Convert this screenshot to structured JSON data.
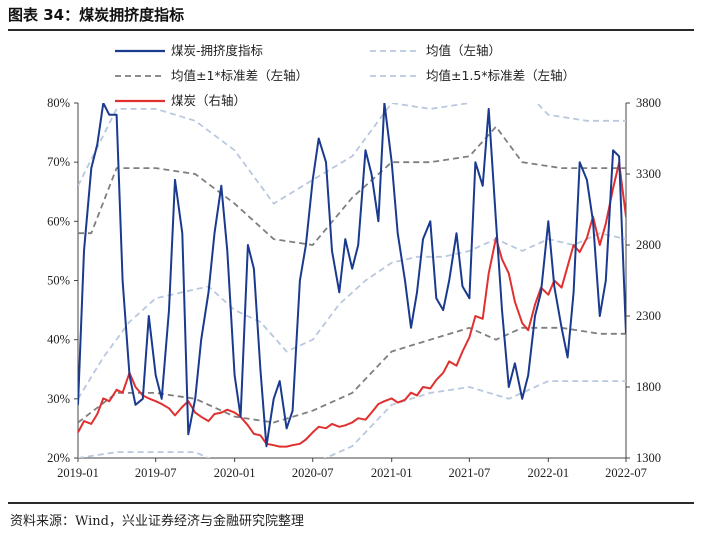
{
  "figure": {
    "title": "图表 34：煤炭拥挤度指标",
    "source": "资料来源：Wind，兴业证券经济与金融研究院整理"
  },
  "chart_data": {
    "type": "line",
    "title": "",
    "x_ticks": [
      "2019-01",
      "2019-07",
      "2020-01",
      "2020-07",
      "2021-01",
      "2021-07",
      "2022-01",
      "2022-07"
    ],
    "x_range": [
      "2019-01",
      "2022-07"
    ],
    "y_left": {
      "ticks": [
        "20%",
        "30%",
        "40%",
        "50%",
        "60%",
        "70%",
        "80%"
      ],
      "range": [
        0.2,
        0.8
      ],
      "format": "percent"
    },
    "y_right": {
      "ticks": [
        "1300",
        "1800",
        "2300",
        "2800",
        "3300",
        "3800"
      ],
      "range": [
        1300,
        3800
      ]
    },
    "legend": {
      "placement": "top",
      "columns": 2
    },
    "series": [
      {
        "name": "煤炭-拥挤度指标",
        "axis": "left",
        "style": "solid",
        "color": "#1a3a8f",
        "points": [
          [
            "2019-01-01",
            0.29
          ],
          [
            "2019-01-15",
            0.55
          ],
          [
            "2019-02-01",
            0.69
          ],
          [
            "2019-02-15",
            0.73
          ],
          [
            "2019-03-01",
            0.8
          ],
          [
            "2019-03-15",
            0.78
          ],
          [
            "2019-04-01",
            0.78
          ],
          [
            "2019-04-15",
            0.5
          ],
          [
            "2019-05-01",
            0.34
          ],
          [
            "2019-05-15",
            0.29
          ],
          [
            "2019-06-01",
            0.3
          ],
          [
            "2019-06-15",
            0.44
          ],
          [
            "2019-07-01",
            0.34
          ],
          [
            "2019-07-15",
            0.3
          ],
          [
            "2019-08-01",
            0.45
          ],
          [
            "2019-08-15",
            0.67
          ],
          [
            "2019-09-01",
            0.58
          ],
          [
            "2019-09-15",
            0.24
          ],
          [
            "2019-10-01",
            0.3
          ],
          [
            "2019-10-15",
            0.4
          ],
          [
            "2019-11-01",
            0.48
          ],
          [
            "2019-11-15",
            0.58
          ],
          [
            "2019-12-01",
            0.66
          ],
          [
            "2019-12-15",
            0.55
          ],
          [
            "2020-01-01",
            0.34
          ],
          [
            "2020-01-15",
            0.27
          ],
          [
            "2020-02-01",
            0.56
          ],
          [
            "2020-02-15",
            0.52
          ],
          [
            "2020-03-01",
            0.35
          ],
          [
            "2020-03-15",
            0.22
          ],
          [
            "2020-04-01",
            0.3
          ],
          [
            "2020-04-15",
            0.33
          ],
          [
            "2020-05-01",
            0.25
          ],
          [
            "2020-05-15",
            0.28
          ],
          [
            "2020-06-01",
            0.5
          ],
          [
            "2020-06-15",
            0.56
          ],
          [
            "2020-07-01",
            0.67
          ],
          [
            "2020-07-15",
            0.74
          ],
          [
            "2020-08-01",
            0.7
          ],
          [
            "2020-08-15",
            0.55
          ],
          [
            "2020-09-01",
            0.48
          ],
          [
            "2020-09-15",
            0.57
          ],
          [
            "2020-10-01",
            0.52
          ],
          [
            "2020-10-15",
            0.56
          ],
          [
            "2020-11-01",
            0.72
          ],
          [
            "2020-11-15",
            0.68
          ],
          [
            "2020-12-01",
            0.6
          ],
          [
            "2020-12-15",
            0.8
          ],
          [
            "2021-01-01",
            0.7
          ],
          [
            "2021-01-15",
            0.58
          ],
          [
            "2021-02-01",
            0.5
          ],
          [
            "2021-02-15",
            0.42
          ],
          [
            "2021-03-01",
            0.48
          ],
          [
            "2021-03-15",
            0.57
          ],
          [
            "2021-04-01",
            0.6
          ],
          [
            "2021-04-15",
            0.47
          ],
          [
            "2021-05-01",
            0.45
          ],
          [
            "2021-05-15",
            0.5
          ],
          [
            "2021-06-01",
            0.58
          ],
          [
            "2021-06-15",
            0.49
          ],
          [
            "2021-07-01",
            0.47
          ],
          [
            "2021-07-15",
            0.7
          ],
          [
            "2021-08-01",
            0.66
          ],
          [
            "2021-08-15",
            0.79
          ],
          [
            "2021-09-01",
            0.6
          ],
          [
            "2021-09-15",
            0.45
          ],
          [
            "2021-10-01",
            0.32
          ],
          [
            "2021-10-15",
            0.36
          ],
          [
            "2021-11-01",
            0.3
          ],
          [
            "2021-11-15",
            0.34
          ],
          [
            "2021-12-01",
            0.44
          ],
          [
            "2021-12-15",
            0.48
          ],
          [
            "2022-01-01",
            0.6
          ],
          [
            "2022-01-15",
            0.49
          ],
          [
            "2022-02-01",
            0.42
          ],
          [
            "2022-02-15",
            0.37
          ],
          [
            "2022-03-01",
            0.48
          ],
          [
            "2022-03-15",
            0.7
          ],
          [
            "2022-04-01",
            0.67
          ],
          [
            "2022-04-15",
            0.6
          ],
          [
            "2022-05-01",
            0.44
          ],
          [
            "2022-05-15",
            0.5
          ],
          [
            "2022-06-01",
            0.72
          ],
          [
            "2022-06-15",
            0.71
          ],
          [
            "2022-07-01",
            0.41
          ]
        ]
      },
      {
        "name": "均值（左轴）",
        "axis": "left",
        "style": "dashed",
        "color": "#b9c8df",
        "points": [
          [
            "2019-01-01",
            0.3
          ],
          [
            "2019-03-01",
            0.37
          ],
          [
            "2019-05-01",
            0.43
          ],
          [
            "2019-07-01",
            0.47
          ],
          [
            "2019-09-01",
            0.48
          ],
          [
            "2019-11-01",
            0.49
          ],
          [
            "2020-01-01",
            0.45
          ],
          [
            "2020-03-01",
            0.43
          ],
          [
            "2020-05-01",
            0.38
          ],
          [
            "2020-07-01",
            0.4
          ],
          [
            "2020-09-01",
            0.46
          ],
          [
            "2020-11-01",
            0.5
          ],
          [
            "2021-01-01",
            0.53
          ],
          [
            "2021-03-01",
            0.54
          ],
          [
            "2021-05-01",
            0.54
          ],
          [
            "2021-07-01",
            0.55
          ],
          [
            "2021-09-01",
            0.57
          ],
          [
            "2021-11-01",
            0.55
          ],
          [
            "2022-01-01",
            0.57
          ],
          [
            "2022-03-01",
            0.56
          ],
          [
            "2022-05-01",
            0.58
          ],
          [
            "2022-07-01",
            0.57
          ]
        ]
      },
      {
        "name": "均值±1*标准差（左轴）",
        "axis": "left",
        "style": "dashed",
        "color": "#7f7f7f",
        "points": [
          [
            "2019-01-01",
            0.58
          ],
          [
            "2019-02-01",
            0.58
          ],
          [
            "2019-04-01",
            0.69
          ],
          [
            "2019-07-01",
            0.69
          ],
          [
            "2019-10-01",
            0.68
          ],
          [
            "2020-01-01",
            0.63
          ],
          [
            "2020-04-01",
            0.57
          ],
          [
            "2020-07-01",
            0.56
          ],
          [
            "2020-10-01",
            0.64
          ],
          [
            "2021-01-01",
            0.7
          ],
          [
            "2021-04-01",
            0.7
          ],
          [
            "2021-07-01",
            0.71
          ],
          [
            "2021-09-01",
            0.76
          ],
          [
            "2021-11-01",
            0.7
          ],
          [
            "2022-02-01",
            0.69
          ],
          [
            "2022-05-01",
            0.69
          ],
          [
            "2022-07-01",
            0.69
          ],
          [
            "2019-01-01",
            0.26
          ],
          [
            "2019-04-01",
            0.31
          ],
          [
            "2019-07-01",
            0.31
          ],
          [
            "2019-10-01",
            0.3
          ],
          [
            "2020-01-01",
            0.27
          ],
          [
            "2020-04-01",
            0.26
          ],
          [
            "2020-07-01",
            0.28
          ],
          [
            "2020-10-01",
            0.31
          ],
          [
            "2021-01-01",
            0.38
          ],
          [
            "2021-04-01",
            0.4
          ],
          [
            "2021-07-01",
            0.42
          ],
          [
            "2021-09-01",
            0.4
          ],
          [
            "2021-11-01",
            0.42
          ],
          [
            "2022-02-01",
            0.42
          ],
          [
            "2022-05-01",
            0.41
          ],
          [
            "2022-07-01",
            0.41
          ]
        ]
      },
      {
        "name": "均值±1.5*标准差（左轴）",
        "axis": "left",
        "style": "dashed",
        "color": "#b9c8df",
        "points": [
          [
            "2019-01-01",
            0.66
          ],
          [
            "2019-04-01",
            0.79
          ],
          [
            "2019-07-01",
            0.79
          ],
          [
            "2019-10-01",
            0.77
          ],
          [
            "2020-01-01",
            0.72
          ],
          [
            "2020-04-01",
            0.63
          ],
          [
            "2020-07-01",
            0.67
          ],
          [
            "2020-10-01",
            0.71
          ],
          [
            "2021-01-01",
            0.8
          ],
          [
            "2021-04-01",
            0.79
          ],
          [
            "2021-07-01",
            0.8
          ],
          [
            "2021-10-01",
            0.85
          ],
          [
            "2022-01-01",
            0.78
          ],
          [
            "2022-04-01",
            0.77
          ],
          [
            "2022-07-01",
            0.77
          ],
          [
            "2019-01-01",
            0.2
          ],
          [
            "2019-04-01",
            0.21
          ],
          [
            "2019-07-01",
            0.21
          ],
          [
            "2019-10-01",
            0.21
          ],
          [
            "2020-01-01",
            0.18
          ],
          [
            "2020-04-01",
            0.17
          ],
          [
            "2020-07-01",
            0.19
          ],
          [
            "2020-10-01",
            0.22
          ],
          [
            "2021-01-01",
            0.29
          ],
          [
            "2021-04-01",
            0.31
          ],
          [
            "2021-07-01",
            0.32
          ],
          [
            "2021-10-01",
            0.3
          ],
          [
            "2022-01-01",
            0.33
          ],
          [
            "2022-04-01",
            0.33
          ],
          [
            "2022-07-01",
            0.33
          ]
        ]
      },
      {
        "name": "煤炭（右轴）",
        "axis": "right",
        "style": "solid",
        "color": "#e03030",
        "points": [
          [
            "2019-01-01",
            1480
          ],
          [
            "2019-01-15",
            1560
          ],
          [
            "2019-02-01",
            1540
          ],
          [
            "2019-02-15",
            1610
          ],
          [
            "2019-03-01",
            1720
          ],
          [
            "2019-03-15",
            1700
          ],
          [
            "2019-04-01",
            1780
          ],
          [
            "2019-04-15",
            1760
          ],
          [
            "2019-05-01",
            1900
          ],
          [
            "2019-05-15",
            1800
          ],
          [
            "2019-06-01",
            1740
          ],
          [
            "2019-06-15",
            1720
          ],
          [
            "2019-07-01",
            1700
          ],
          [
            "2019-07-15",
            1680
          ],
          [
            "2019-08-01",
            1650
          ],
          [
            "2019-08-15",
            1600
          ],
          [
            "2019-09-01",
            1660
          ],
          [
            "2019-09-15",
            1700
          ],
          [
            "2019-10-01",
            1620
          ],
          [
            "2019-10-15",
            1590
          ],
          [
            "2019-11-01",
            1560
          ],
          [
            "2019-11-15",
            1610
          ],
          [
            "2019-12-01",
            1620
          ],
          [
            "2019-12-15",
            1640
          ],
          [
            "2020-01-01",
            1620
          ],
          [
            "2020-01-15",
            1590
          ],
          [
            "2020-02-01",
            1530
          ],
          [
            "2020-02-15",
            1470
          ],
          [
            "2020-03-01",
            1460
          ],
          [
            "2020-03-15",
            1400
          ],
          [
            "2020-04-01",
            1390
          ],
          [
            "2020-04-15",
            1380
          ],
          [
            "2020-05-01",
            1380
          ],
          [
            "2020-05-15",
            1390
          ],
          [
            "2020-06-01",
            1400
          ],
          [
            "2020-06-15",
            1430
          ],
          [
            "2020-07-01",
            1480
          ],
          [
            "2020-07-15",
            1520
          ],
          [
            "2020-08-01",
            1510
          ],
          [
            "2020-08-15",
            1540
          ],
          [
            "2020-09-01",
            1520
          ],
          [
            "2020-09-15",
            1530
          ],
          [
            "2020-10-01",
            1550
          ],
          [
            "2020-10-15",
            1580
          ],
          [
            "2020-11-01",
            1570
          ],
          [
            "2020-11-15",
            1620
          ],
          [
            "2020-12-01",
            1680
          ],
          [
            "2020-12-15",
            1700
          ],
          [
            "2021-01-01",
            1720
          ],
          [
            "2021-01-15",
            1690
          ],
          [
            "2021-02-01",
            1710
          ],
          [
            "2021-02-15",
            1760
          ],
          [
            "2021-03-01",
            1740
          ],
          [
            "2021-03-15",
            1800
          ],
          [
            "2021-04-01",
            1790
          ],
          [
            "2021-04-15",
            1850
          ],
          [
            "2021-05-01",
            1900
          ],
          [
            "2021-05-15",
            1980
          ],
          [
            "2021-06-01",
            1950
          ],
          [
            "2021-06-15",
            2050
          ],
          [
            "2021-07-01",
            2150
          ],
          [
            "2021-07-15",
            2300
          ],
          [
            "2021-08-01",
            2280
          ],
          [
            "2021-08-15",
            2600
          ],
          [
            "2021-09-01",
            2850
          ],
          [
            "2021-09-15",
            2700
          ],
          [
            "2021-10-01",
            2600
          ],
          [
            "2021-10-15",
            2400
          ],
          [
            "2021-11-01",
            2250
          ],
          [
            "2021-11-15",
            2200
          ],
          [
            "2021-12-01",
            2380
          ],
          [
            "2021-12-15",
            2500
          ],
          [
            "2022-01-01",
            2450
          ],
          [
            "2022-01-15",
            2550
          ],
          [
            "2022-02-01",
            2500
          ],
          [
            "2022-02-15",
            2650
          ],
          [
            "2022-03-01",
            2800
          ],
          [
            "2022-03-15",
            2750
          ],
          [
            "2022-04-01",
            2850
          ],
          [
            "2022-04-15",
            3000
          ],
          [
            "2022-05-01",
            2800
          ],
          [
            "2022-05-15",
            2950
          ],
          [
            "2022-06-01",
            3200
          ],
          [
            "2022-06-15",
            3380
          ],
          [
            "2022-07-01",
            3000
          ],
          [
            "2022-07-08",
            3150
          ],
          [
            "2022-07-15",
            3050
          ]
        ]
      }
    ]
  }
}
